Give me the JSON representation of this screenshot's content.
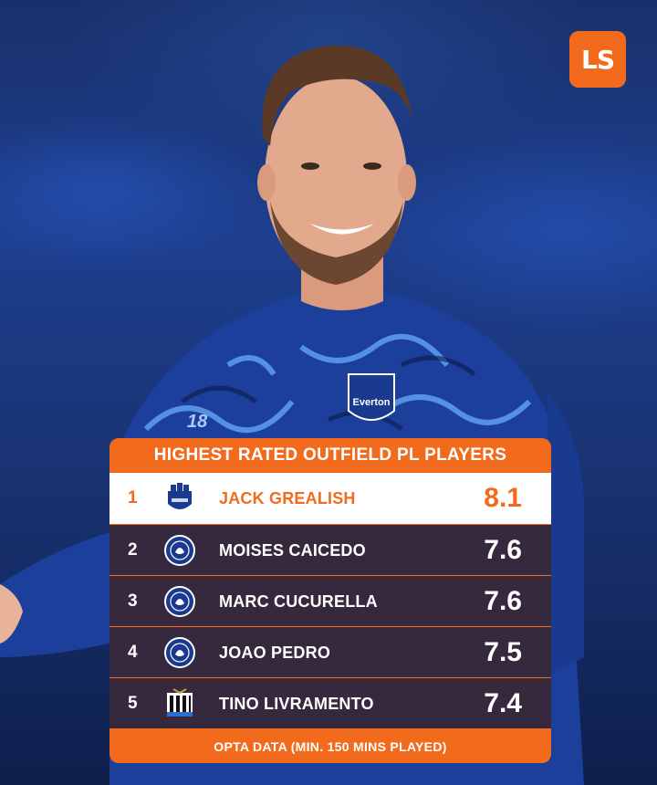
{
  "brand": {
    "logo_text": "LS",
    "accent": "#f26b1d"
  },
  "table": {
    "title": "HIGHEST RATED OUTFIELD PL PLAYERS",
    "footer": "OPTA DATA (MIN. 150 MINS PLAYED)",
    "rows": [
      {
        "rank": "1",
        "club_icon": "everton-crest-icon",
        "name": "JACK GREALISH",
        "rating": "8.1"
      },
      {
        "rank": "2",
        "club_icon": "chelsea-crest-icon",
        "name": "MOISES CAICEDO",
        "rating": "7.6"
      },
      {
        "rank": "3",
        "club_icon": "chelsea-crest-icon",
        "name": "MARC CUCURELLA",
        "rating": "7.6"
      },
      {
        "rank": "4",
        "club_icon": "chelsea-crest-icon",
        "name": "JOAO PEDRO",
        "rating": "7.5"
      },
      {
        "rank": "5",
        "club_icon": "newcastle-crest-icon",
        "name": "TINO LIVRAMENTO",
        "rating": "7.4"
      }
    ]
  },
  "photo": {
    "shirt_number": "18",
    "shirt_club": "Everton"
  }
}
